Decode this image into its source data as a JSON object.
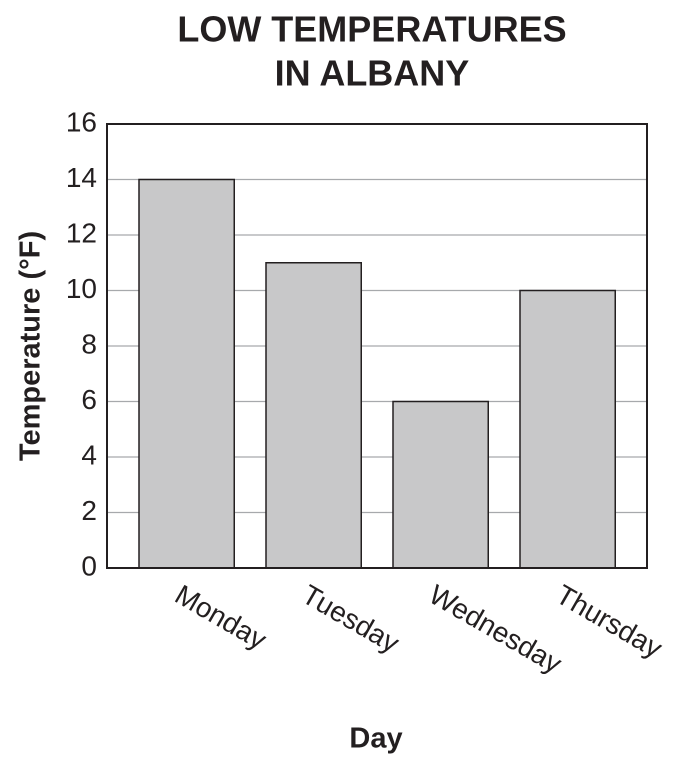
{
  "chart_data": {
    "type": "bar",
    "title": [
      "LOW TEMPERATURES",
      "IN ALBANY"
    ],
    "x_label": "Day",
    "y_label": "Temperature (°F)",
    "categories": [
      "Monday",
      "Tuesday",
      "Wednesday",
      "Thursday"
    ],
    "values": [
      14,
      11,
      6,
      10
    ],
    "color": "#c8c8c9",
    "ylim": [
      0,
      16
    ],
    "yticks": [
      0,
      2,
      4,
      6,
      8,
      10,
      12,
      14,
      16
    ],
    "grid": true
  }
}
